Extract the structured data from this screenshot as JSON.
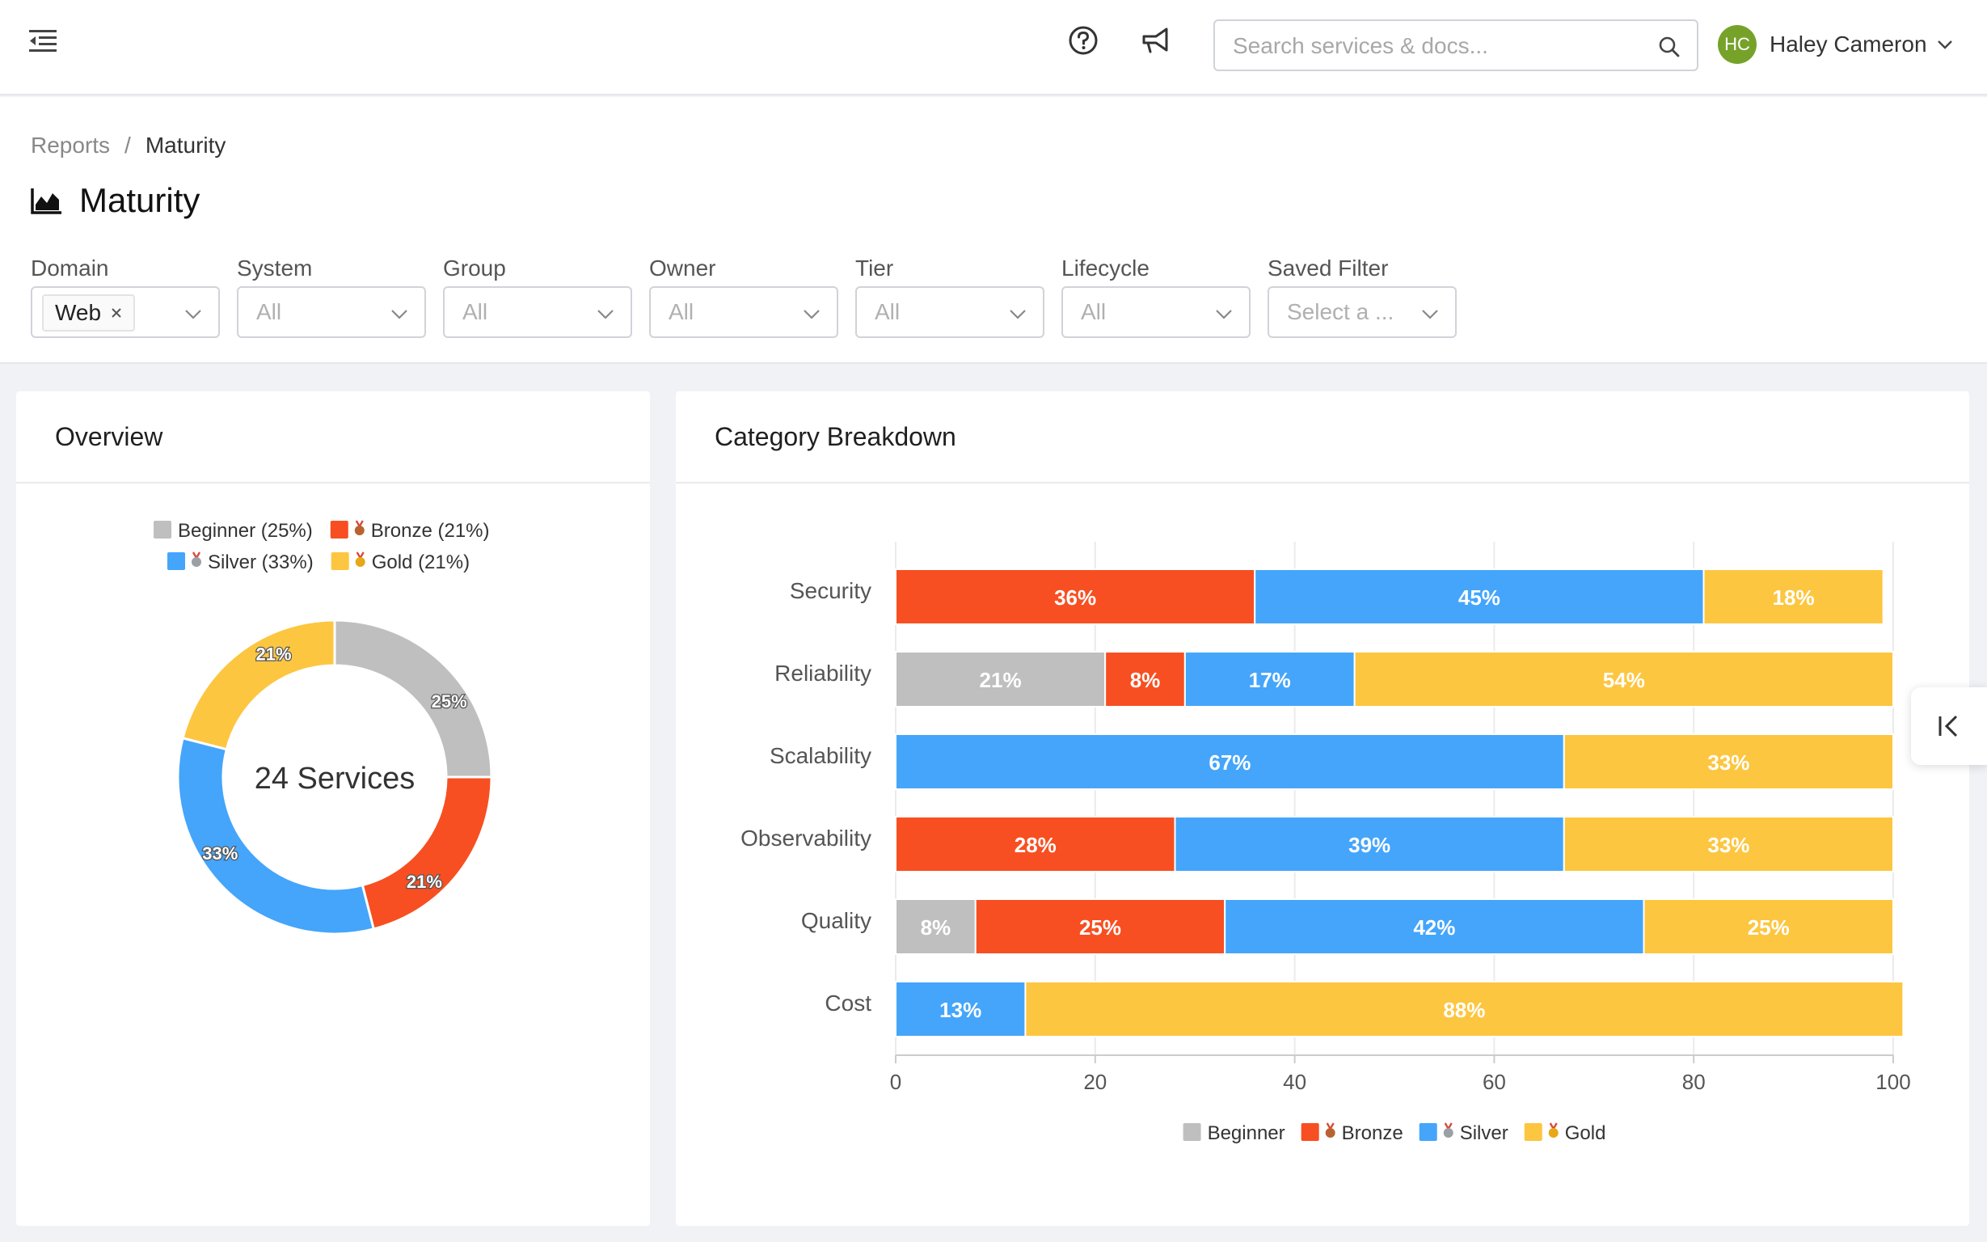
{
  "header": {
    "search_placeholder": "Search services & docs...",
    "user": {
      "initials": "HC",
      "name": "Haley Cameron",
      "avatar_color": "#76a22a"
    }
  },
  "breadcrumb": {
    "parent": "Reports",
    "separator": "/",
    "current": "Maturity"
  },
  "page": {
    "title": "Maturity"
  },
  "filters": [
    {
      "label": "Domain",
      "value": "Web",
      "is_tag": true
    },
    {
      "label": "System",
      "value": "All"
    },
    {
      "label": "Group",
      "value": "All"
    },
    {
      "label": "Owner",
      "value": "All"
    },
    {
      "label": "Tier",
      "value": "All"
    },
    {
      "label": "Lifecycle",
      "value": "All"
    },
    {
      "label": "Saved Filter",
      "value": "Select a ..."
    }
  ],
  "overview": {
    "title": "Overview",
    "center_label": "24 Services"
  },
  "breakdown": {
    "title": "Category Breakdown"
  },
  "colors": {
    "beginner": "#bfbfbf",
    "bronze": "#f74f21",
    "silver": "#44a5fb",
    "gold": "#fdc640"
  },
  "chart_data": [
    {
      "type": "pie",
      "legend_position": "top",
      "labels": [
        "Beginner",
        "Bronze",
        "Silver",
        "Gold"
      ],
      "legend_labels": [
        "Beginner (25%)",
        "Bronze (21%)",
        "Silver (33%)",
        "Gold (21%)"
      ],
      "legend_icons": [
        "",
        "bronze-medal-icon",
        "silver-medal-icon",
        "gold-medal-icon"
      ],
      "values": [
        25,
        21,
        33,
        21
      ],
      "data_labels": [
        "25%",
        "21%",
        "33%",
        "21%"
      ],
      "colors": [
        "#bfbfbf",
        "#f74f21",
        "#44a5fb",
        "#fdc640"
      ]
    },
    {
      "type": "bar",
      "orientation": "horizontal",
      "stacked": true,
      "categories": [
        "Security",
        "Reliability",
        "Scalability",
        "Observability",
        "Quality",
        "Cost"
      ],
      "series": [
        {
          "name": "Beginner",
          "color": "#bfbfbf",
          "values": [
            0,
            21,
            0,
            0,
            8,
            0
          ]
        },
        {
          "name": "Bronze",
          "color": "#f74f21",
          "values": [
            36,
            8,
            0,
            28,
            25,
            0
          ]
        },
        {
          "name": "Silver",
          "color": "#44a5fb",
          "values": [
            45,
            17,
            67,
            39,
            42,
            13
          ]
        },
        {
          "name": "Gold",
          "color": "#fdc640",
          "values": [
            18,
            54,
            33,
            33,
            25,
            88
          ]
        }
      ],
      "xlim": [
        0,
        100
      ],
      "xticks": [
        "0",
        "20",
        "40",
        "60",
        "80",
        "100"
      ],
      "legend_position": "bottom",
      "legend_icons": [
        "",
        "bronze-medal-icon",
        "silver-medal-icon",
        "gold-medal-icon"
      ],
      "grid": true
    }
  ]
}
